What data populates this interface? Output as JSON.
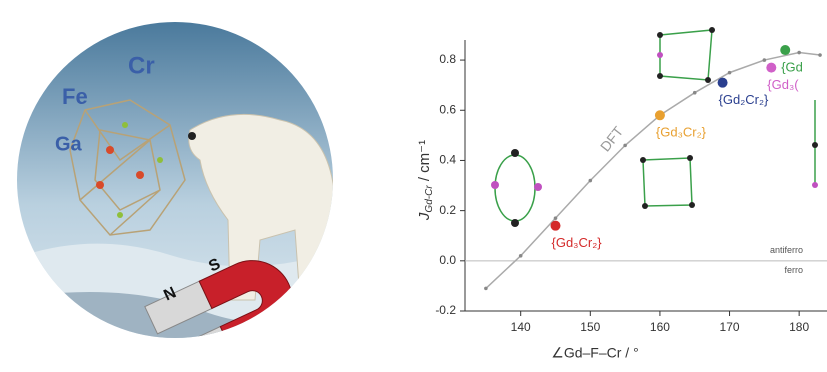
{
  "illustration": {
    "labels": [
      "Fe",
      "Cr",
      "Ga",
      "N",
      "S"
    ]
  },
  "chart_data": {
    "type": "line",
    "xlabel": "∠Gd–F–Cr / °",
    "ylabel": "J",
    "ylabel_sub": "Gd-Cr",
    "ylabel_unit": " / cm⁻¹",
    "xlim": [
      132,
      184
    ],
    "xticks": [
      140,
      150,
      160,
      170,
      180
    ],
    "ylim": [
      -0.2,
      0.88
    ],
    "yticks": [
      -0.2,
      {
        "value": 0,
        "label": "0.0"
      },
      0.2,
      0.4,
      0.6,
      0.8
    ],
    "series": [
      {
        "name": "DFT",
        "color": "#aaaaaa",
        "x": [
          135,
          140,
          145,
          150,
          155,
          160,
          165,
          170,
          175,
          180,
          183
        ],
        "values": [
          -0.11,
          0.02,
          0.17,
          0.32,
          0.46,
          0.58,
          0.67,
          0.75,
          0.8,
          0.83,
          0.82
        ]
      }
    ],
    "points": [
      {
        "label": "{Gd₃Cr₂}",
        "color": "#d42a2a",
        "x": 145,
        "y": 0.14
      },
      {
        "label": "{Gd₃Cr₂}",
        "color": "#e8a030",
        "x": 160,
        "y": 0.58
      },
      {
        "label": "{Gd₂Cr₂}",
        "color": "#2a3f8f",
        "x": 169,
        "y": 0.71
      },
      {
        "label": "{Gd₃(",
        "color": "#d060c8",
        "x": 176,
        "y": 0.77
      },
      {
        "label": "{Gd",
        "color": "#3aa04a",
        "x": 178,
        "y": 0.84
      }
    ],
    "baseline_labels": [
      "antiferro",
      "ferro"
    ]
  }
}
